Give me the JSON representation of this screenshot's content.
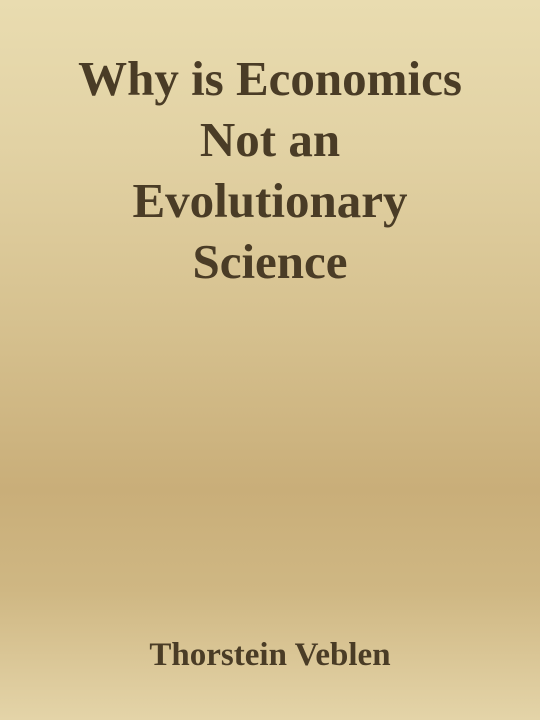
{
  "cover": {
    "title_lines": [
      "Why is Economics",
      "Not an",
      "Evolutionary",
      "Science"
    ],
    "author": "Thorstein Veblen",
    "colors": {
      "text": "#4a3c26",
      "background_top": "#e9dcb0",
      "background_mid": "#c9ae79",
      "background_bottom": "#e4d4a8"
    }
  }
}
